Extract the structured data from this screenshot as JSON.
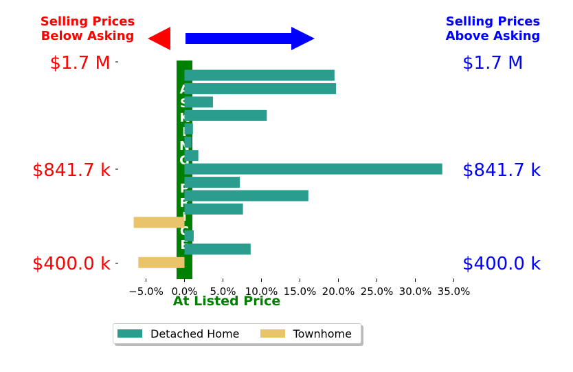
{
  "colors": {
    "detached": "#2a9d8f",
    "townhome": "#e9c46a",
    "below": "#ff0000",
    "above": "#0000ff",
    "asking": "#008000"
  },
  "headers": {
    "below": "Selling Prices\nBelow Asking",
    "above": "Selling Prices\nAbove Asking"
  },
  "price_labels": {
    "left": [
      "$1.7 M",
      "$841.7 k",
      "$400.0 k"
    ],
    "right": [
      "$1.7 M",
      "$841.7 k",
      "$400.0 k"
    ]
  },
  "asking_price_text": "ASKING PRICE",
  "chart_data": {
    "type": "bar",
    "orientation": "horizontal",
    "xlabel": "At Listed Price",
    "x_ticks": [
      "−5.0%",
      "0.0%",
      "5.0%",
      "10.0%",
      "15.0%",
      "20.0%",
      "25.0%",
      "30.0%",
      "35.0%"
    ],
    "xlim": [
      -8.5,
      37
    ],
    "series": [
      {
        "name": "Detached Home",
        "color_key": "detached",
        "values": [
          19.5,
          19.7,
          3.7,
          10.7,
          1.1,
          0.9,
          1.8,
          33.5,
          7.2,
          16.1,
          7.6,
          null,
          1.2,
          8.6,
          null
        ]
      },
      {
        "name": "Townhome",
        "color_key": "townhome",
        "values": [
          null,
          null,
          null,
          null,
          null,
          null,
          null,
          null,
          null,
          null,
          null,
          -6.6,
          null,
          null,
          -6.0
        ]
      }
    ]
  },
  "legend": [
    "Detached Home",
    "Townhome"
  ]
}
